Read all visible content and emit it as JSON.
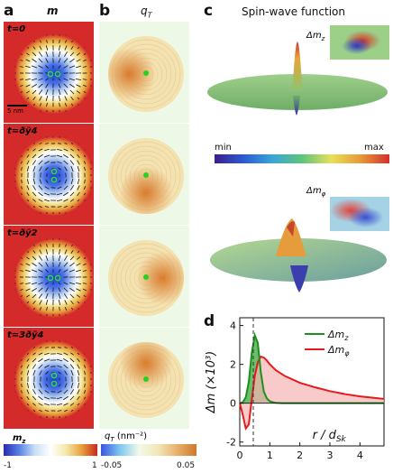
{
  "panel_labels": {
    "a": "a",
    "b": "b",
    "c": "c",
    "d": "d"
  },
  "column_a": {
    "title": "m",
    "time_labels": [
      "t=0",
      "t=ðÿ4",
      "t=ðÿ2",
      "t=3ðÿ4"
    ],
    "scale_bar": "5 nm"
  },
  "column_b": {
    "title": "q",
    "title_sub": "T"
  },
  "column_c": {
    "title": "Spin-wave function",
    "label_top": "Δm",
    "label_top_sub": "z",
    "label_bottom": "Δm",
    "label_bottom_sub": "φ",
    "colorbar_min": "min",
    "colorbar_max": "max"
  },
  "colorbar_mz": {
    "label": "m",
    "label_sub": "z",
    "min": "-1",
    "max": "1"
  },
  "colorbar_qt": {
    "label": "q",
    "label_sub": "T",
    "unit": "(nm⁻²)",
    "min": "-0.05",
    "max": "0.05"
  },
  "chart_data": {
    "type": "area",
    "xlabel": "r / d",
    "xlabel_sub": "Sk",
    "ylabel": "Δm (×10³)",
    "xlim": [
      0,
      4.8
    ],
    "ylim": [
      -2.2,
      4.4
    ],
    "xticks": [
      "0",
      "1",
      "2",
      "3",
      "4"
    ],
    "yticks": [
      "-2",
      "0",
      "2",
      "4"
    ],
    "vline_x": 0.45,
    "legend_position": "top-right",
    "series": [
      {
        "name": "Δm",
        "name_sub": "z",
        "color": "#1e8f1e",
        "x": [
          0,
          0.1,
          0.2,
          0.3,
          0.4,
          0.5,
          0.6,
          0.7,
          0.8,
          0.9,
          1.0,
          1.1,
          1.2,
          1.4,
          1.6,
          4.8
        ],
        "y": [
          0,
          0.05,
          0.3,
          1.1,
          2.6,
          3.5,
          3.1,
          1.6,
          0.6,
          0.25,
          0.1,
          0.05,
          0.02,
          0,
          0,
          0
        ]
      },
      {
        "name": "Δm",
        "name_sub": "φ",
        "color": "#e8191c",
        "x": [
          0,
          0.1,
          0.2,
          0.3,
          0.4,
          0.5,
          0.6,
          0.7,
          0.8,
          0.9,
          1.0,
          1.2,
          1.5,
          2.0,
          2.5,
          3.0,
          3.5,
          4.0,
          4.5,
          4.8
        ],
        "y": [
          0,
          -0.6,
          -1.3,
          -1.1,
          0.2,
          1.4,
          2.1,
          2.4,
          2.35,
          2.2,
          2.0,
          1.7,
          1.4,
          1.05,
          0.82,
          0.62,
          0.47,
          0.35,
          0.27,
          0.22
        ]
      }
    ]
  },
  "colors": {
    "skyrmion_core": "#2a4fd0",
    "background_red": "#d42a2a",
    "qt_background": "#eef8e6",
    "qt_peak": "#d97a2a",
    "chart_fill_green": "#3aa83a",
    "chart_fill_red": "#f6b3b3"
  }
}
